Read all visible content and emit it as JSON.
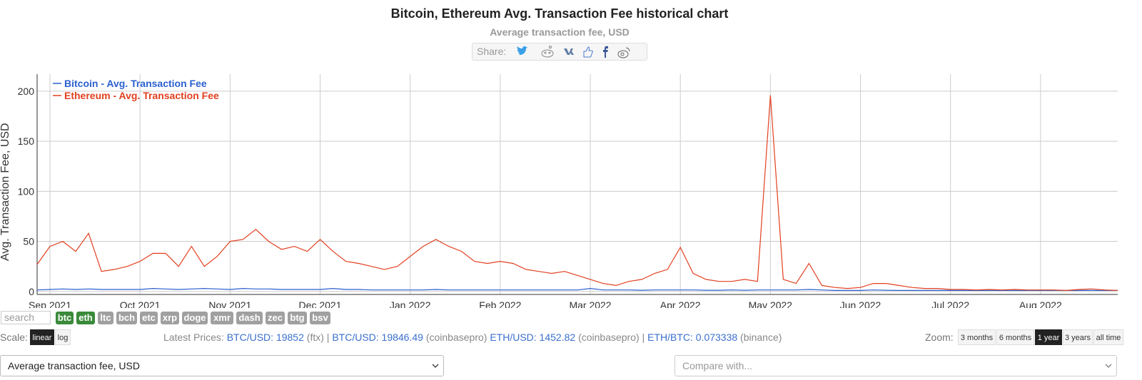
{
  "header": {
    "title": "Bitcoin, Ethereum Avg. Transaction Fee historical chart",
    "subtitle": "Average transaction fee, USD",
    "share_label": "Share:"
  },
  "chart_data": {
    "type": "line",
    "y_label": "Avg. Transaction Fee, USD",
    "categories": [
      null,
      "Sep 2021",
      null,
      null,
      null,
      null,
      null,
      null,
      "Oct 2021",
      null,
      null,
      null,
      null,
      null,
      null,
      "Nov 2021",
      null,
      null,
      null,
      null,
      null,
      null,
      "Dec 2021",
      null,
      null,
      null,
      null,
      null,
      null,
      "Jan 2022",
      null,
      null,
      null,
      null,
      null,
      null,
      "Feb 2022",
      null,
      null,
      null,
      null,
      null,
      null,
      "Mar 2022",
      null,
      null,
      null,
      null,
      null,
      null,
      "Apr 2022",
      null,
      null,
      null,
      null,
      null,
      null,
      "May 2022",
      null,
      null,
      null,
      null,
      null,
      null,
      "Jun 2022",
      null,
      null,
      null,
      null,
      null,
      null,
      "Jul 2022",
      null,
      null,
      null,
      null,
      null,
      null,
      "Aug 2022",
      null,
      null,
      null,
      null,
      null,
      null
    ],
    "series": [
      {
        "name": "Bitcoin - Avg. Transaction Fee",
        "color": "#2a5fcf",
        "values": [
          1.5,
          2,
          2.5,
          2,
          2.5,
          2,
          2,
          2,
          2,
          3,
          2.5,
          2,
          2.5,
          3,
          2.5,
          2,
          3,
          2.5,
          2.5,
          2,
          2,
          2,
          2,
          3,
          2,
          2,
          1.5,
          1.5,
          1.5,
          1.5,
          1.5,
          2,
          1.5,
          1.5,
          1.5,
          1.5,
          1.5,
          1.5,
          1.5,
          1.5,
          1.5,
          1.5,
          1.5,
          3,
          1.5,
          1.5,
          1.5,
          1.2,
          1.5,
          1.5,
          1.5,
          1.5,
          1.2,
          1.2,
          1.5,
          1.2,
          1.5,
          1.5,
          1.5,
          1.5,
          2,
          1.5,
          1,
          1,
          1,
          1.5,
          1.2,
          1,
          1,
          1,
          1,
          1,
          1,
          1,
          1,
          1,
          1,
          1,
          1,
          1,
          1,
          1,
          1,
          1,
          1
        ]
      },
      {
        "name": "Ethereum - Avg. Transaction Fee",
        "color": "#e2401f",
        "values": [
          27,
          45,
          50,
          40,
          58,
          20,
          22,
          25,
          30,
          38,
          38,
          25,
          45,
          25,
          35,
          50,
          52,
          62,
          50,
          42,
          45,
          40,
          52,
          40,
          30,
          28,
          25,
          22,
          25,
          35,
          45,
          52,
          45,
          40,
          30,
          28,
          30,
          28,
          22,
          20,
          18,
          20,
          16,
          12,
          8,
          6,
          10,
          12,
          18,
          22,
          44,
          18,
          12,
          10,
          10,
          12,
          10,
          196,
          12,
          8,
          28,
          6,
          4,
          3,
          4,
          8,
          8,
          6,
          4,
          3,
          3,
          2,
          2,
          1.5,
          2,
          1.5,
          2,
          1.5,
          1.5,
          1.5,
          1,
          2,
          2.5,
          1.5,
          1
        ]
      }
    ],
    "ylim": [
      -3,
      217
    ],
    "yticks": [
      0,
      50,
      100,
      150,
      200
    ],
    "grid": true,
    "legend": "upper left"
  },
  "search_placeholder": "search",
  "coins": [
    {
      "label": "btc",
      "active": true
    },
    {
      "label": "eth",
      "active": true
    },
    {
      "label": "ltc",
      "active": false
    },
    {
      "label": "bch",
      "active": false
    },
    {
      "label": "etc",
      "active": false
    },
    {
      "label": "xrp",
      "active": false
    },
    {
      "label": "doge",
      "active": false
    },
    {
      "label": "xmr",
      "active": false
    },
    {
      "label": "dash",
      "active": false
    },
    {
      "label": "zec",
      "active": false
    },
    {
      "label": "btg",
      "active": false
    },
    {
      "label": "bsv",
      "active": false
    }
  ],
  "scale": {
    "label": "Scale:",
    "options": [
      "linear",
      "log"
    ],
    "selected": 0
  },
  "latest_prices": {
    "label": "Latest Prices:",
    "items": [
      {
        "pair": "BTC/USD: 19852",
        "source": "(ftx) |"
      },
      {
        "pair": "BTC/USD: 19846.49",
        "source": "(coinbasepro)"
      },
      {
        "pair": "ETH/USD: 1452.82",
        "source": "(coinbasepro) |"
      },
      {
        "pair": "ETH/BTC: 0.073338",
        "source": "(binance)"
      }
    ]
  },
  "zoom": {
    "label": "Zoom:",
    "options": [
      "3 months",
      "6 months",
      "1 year",
      "3 years",
      "all time"
    ],
    "selected": 2
  },
  "metric_select": "Average transaction fee, USD",
  "compare_placeholder": "Compare with..."
}
